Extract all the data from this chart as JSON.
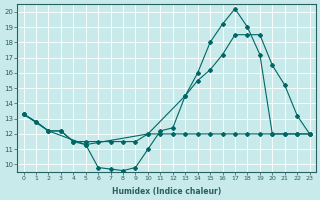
{
  "xlabel": "Humidex (Indice chaleur)",
  "background_color": "#c8eaea",
  "grid_color": "#ffffff",
  "line_color": "#006666",
  "xlim": [
    -0.5,
    23.5
  ],
  "ylim": [
    9.5,
    20.5
  ],
  "xtick_labels": [
    "0",
    "1",
    "2",
    "3",
    "4",
    "5",
    "6",
    "7",
    "8",
    "9",
    "10",
    "11",
    "12",
    "13",
    "14",
    "15",
    "16",
    "17",
    "18",
    "19",
    "20",
    "21",
    "22",
    "23"
  ],
  "ytick_labels": [
    "10",
    "11",
    "12",
    "13",
    "14",
    "15",
    "16",
    "17",
    "18",
    "19",
    "20"
  ],
  "series1_x": [
    0,
    1,
    2,
    3,
    4,
    5,
    6,
    7,
    8,
    9,
    10,
    11,
    12,
    13,
    14,
    15,
    16,
    17,
    18,
    19,
    20,
    21,
    22,
    23
  ],
  "series1_y": [
    13.3,
    12.8,
    12.2,
    12.2,
    11.5,
    11.3,
    9.8,
    9.7,
    9.6,
    9.8,
    11.0,
    12.2,
    12.4,
    14.5,
    16.0,
    18.0,
    19.2,
    20.2,
    19.0,
    17.2,
    12.0,
    12.0,
    12.0,
    12.0
  ],
  "series2_x": [
    0,
    1,
    2,
    3,
    4,
    5,
    6,
    7,
    8,
    9,
    10,
    11,
    12,
    13,
    14,
    15,
    16,
    17,
    18,
    19,
    20,
    21,
    22,
    23
  ],
  "series2_y": [
    13.3,
    12.8,
    12.2,
    12.2,
    11.5,
    11.5,
    11.5,
    11.5,
    11.5,
    11.5,
    12.0,
    12.0,
    12.0,
    12.0,
    12.0,
    12.0,
    12.0,
    12.0,
    12.0,
    12.0,
    12.0,
    12.0,
    12.0,
    12.0
  ],
  "series3_x": [
    0,
    2,
    5,
    10,
    13,
    14,
    15,
    16,
    17,
    18,
    19,
    20,
    21,
    22,
    23
  ],
  "series3_y": [
    13.3,
    12.2,
    11.3,
    12.0,
    14.5,
    15.5,
    16.2,
    17.2,
    18.5,
    18.5,
    18.5,
    16.5,
    15.2,
    13.2,
    12.0
  ]
}
